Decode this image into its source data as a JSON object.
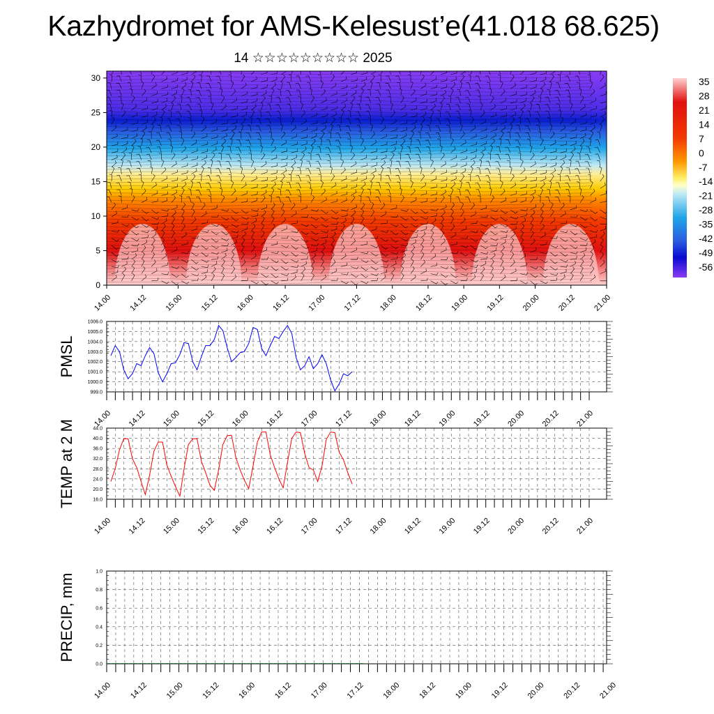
{
  "title": "Kazhydromet for AMS-Kelesust’e(41.018 68.625)",
  "subtitle": "14 ☆☆☆☆☆☆☆☆☆ 2025",
  "colors": {
    "pmsl_line": "#0000ff",
    "temp_line": "#ff0000",
    "axis": "#000000",
    "grid": "#555555"
  },
  "chart_data": [
    {
      "id": "upper-air-section",
      "type": "heatmap",
      "y_ticks": [
        0,
        5,
        10,
        15,
        20,
        25,
        30
      ],
      "ylim": [
        0,
        31
      ],
      "x_ticks": [
        "14.00",
        "14.12",
        "15.00",
        "15.12",
        "16.00",
        "16.12",
        "17.00",
        "17.12",
        "18.00",
        "18.12",
        "19.00",
        "19.12",
        "20.00",
        "20.12",
        "21.00"
      ],
      "colorbar_labels": [
        "35",
        "28",
        "21",
        "14",
        "7",
        "0",
        "-7",
        "-14",
        "-21",
        "-28",
        "-35",
        "-42",
        "-49",
        "-56"
      ],
      "colorbar_range": [
        -63,
        42
      ],
      "overlay": "wind barbs"
    },
    {
      "id": "pmsl",
      "type": "line",
      "ylabel": "PMSL",
      "ylim": [
        999.0,
        1006.0
      ],
      "y_ticks": [
        "1006.0",
        "1005.0",
        "1004.0",
        "1003.0",
        "1002.0",
        "1001.0",
        "1000.0",
        "999.0"
      ],
      "x_ticks": [
        "14.00",
        "14.12",
        "15.00",
        "15.12",
        "16.00",
        "16.12",
        "17.00",
        "17.12",
        "18.00",
        "18.12",
        "19.00",
        "19.12",
        "20.00",
        "20.12",
        "21.00"
      ],
      "series": [
        {
          "values": [
            1002.6,
            1003.6,
            1003.0,
            1001.2,
            1000.3,
            1000.8,
            1001.8,
            1001.6,
            1002.6,
            1003.4,
            1002.8,
            1000.9,
            1000.0,
            1000.8,
            1001.8,
            1001.9,
            1002.7,
            1003.9,
            1003.8,
            1002.0,
            1001.2,
            1002.5,
            1003.6,
            1003.6,
            1004.2,
            1005.6,
            1005.1,
            1003.4,
            1002.0,
            1002.4,
            1002.9,
            1003.0,
            1003.8,
            1005.4,
            1005.2,
            1003.3,
            1002.6,
            1003.6,
            1004.5,
            1004.3,
            1005.0,
            1005.6,
            1004.8,
            1002.4,
            1001.2,
            1001.6,
            1002.5,
            1001.3,
            1001.8,
            1002.7,
            1001.8,
            1000.2,
            999.1,
            999.8,
            1000.8,
            1000.6,
            1001.0
          ]
        }
      ]
    },
    {
      "id": "temp2m",
      "type": "line",
      "ylabel": "TEMP at 2 M",
      "ylim": [
        16.0,
        44.0
      ],
      "y_ticks": [
        "44.0",
        "40.0",
        "36.0",
        "32.0",
        "28.0",
        "24.0",
        "20.0",
        "16.0"
      ],
      "x_ticks": [
        "14.00",
        "14.12",
        "15.00",
        "15.12",
        "16.00",
        "16.12",
        "17.00",
        "17.12",
        "18.00",
        "18.12",
        "19.00",
        "19.12",
        "20.00",
        "20.12",
        "21.00"
      ],
      "series": [
        {
          "values": [
            23.0,
            28.0,
            35.5,
            39.8,
            39.8,
            32.0,
            28.5,
            23.0,
            17.8,
            25.5,
            35.0,
            38.5,
            38.5,
            29.5,
            25.0,
            21.0,
            17.2,
            28.0,
            37.5,
            39.8,
            39.8,
            31.0,
            26.5,
            21.5,
            19.5,
            27.5,
            37.5,
            41.0,
            41.2,
            32.5,
            27.5,
            23.5,
            20.2,
            29.0,
            38.5,
            42.5,
            42.5,
            33.5,
            28.5,
            24.0,
            20.5,
            30.5,
            40.0,
            42.5,
            42.2,
            34.0,
            28.5,
            27.5,
            23.0,
            29.0,
            39.5,
            42.5,
            42.2,
            34.5,
            31.5,
            26.5,
            22.0
          ]
        }
      ]
    },
    {
      "id": "precip",
      "type": "bar",
      "ylabel": "PRECIP, mm",
      "ylim": [
        0.0,
        1.0
      ],
      "y_ticks": [
        "1.0",
        "0.8",
        "0.6",
        "0.4",
        "0.2",
        "0.0"
      ],
      "x_ticks": [
        "14.00",
        "14.12",
        "15.00",
        "15.12",
        "16.00",
        "16.12",
        "17.00",
        "17.12",
        "18.00",
        "18.12",
        "19.00",
        "19.12",
        "20.00",
        "20.12",
        "21.00"
      ],
      "values": [
        0,
        0,
        0,
        0,
        0,
        0,
        0,
        0,
        0,
        0,
        0,
        0,
        0,
        0,
        0,
        0,
        0,
        0,
        0,
        0,
        0,
        0,
        0,
        0,
        0,
        0,
        0,
        0,
        0,
        0,
        0,
        0,
        0,
        0,
        0,
        0,
        0,
        0,
        0,
        0,
        0,
        0,
        0,
        0,
        0,
        0,
        0,
        0,
        0,
        0,
        0,
        0,
        0,
        0,
        0,
        0,
        0
      ]
    }
  ]
}
